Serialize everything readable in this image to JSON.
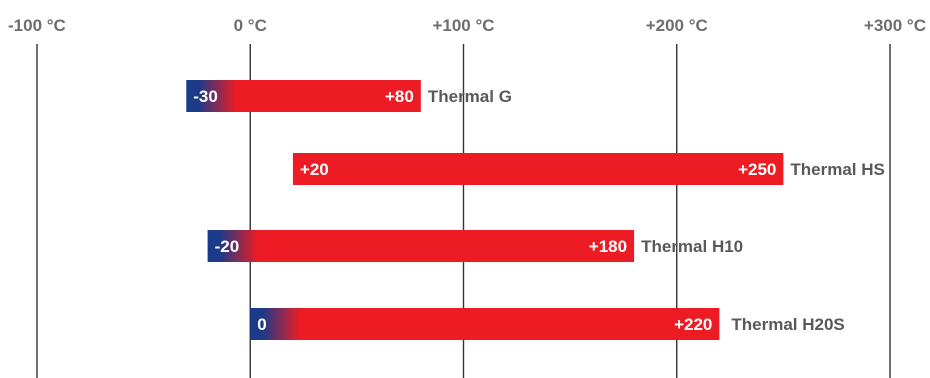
{
  "chart_data": {
    "type": "bar",
    "orientation": "horizontal",
    "chart_style": "floating range bars",
    "xlim": [
      -100,
      300
    ],
    "ticks": [
      -100,
      0,
      100,
      200,
      300
    ],
    "tick_labels": [
      "-100 °C",
      "0 °C",
      "+100 °C",
      "+200 °C",
      "+300 °C"
    ],
    "grid": true,
    "legend": "none",
    "series": [
      {
        "name": "Thermal G",
        "min": -30,
        "max": 80,
        "min_label": "-30",
        "max_label": "+80"
      },
      {
        "name": "Thermal HS",
        "min": 20,
        "max": 250,
        "min_label": "+20",
        "max_label": "+250"
      },
      {
        "name": "Thermal H10",
        "min": -20,
        "max": 180,
        "min_label": "-20",
        "max_label": "+180"
      },
      {
        "name": "Thermal H20S",
        "min": 0,
        "max": 220,
        "min_label": "0",
        "max_label": "+220"
      }
    ],
    "colors": {
      "hot": "#ed1c24",
      "cold": "#1b3a8a",
      "tick_text": "#6d6e71",
      "name_text": "#58595b",
      "gridline": "#333333"
    }
  }
}
